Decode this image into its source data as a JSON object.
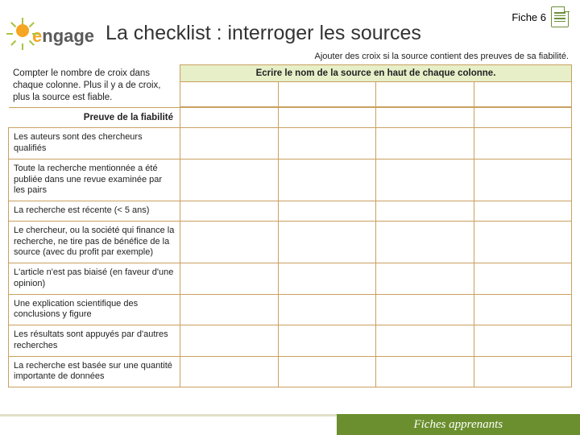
{
  "header": {
    "fiche_label": "Fiche 6",
    "logo_text_e": "e",
    "logo_text_rest": "ngage",
    "title": "La checklist : interroger les sources"
  },
  "subtitle": "Ajouter des croix si la source contient des preuves de sa fiabilité.",
  "instructions": "Compter le nombre de croix dans chaque colonne. Plus il y a de croix, plus la source est fiable.",
  "column_header": "Ecrire le nom de la source en haut de chaque colonne.",
  "row_header": "Preuve de la fiabilité",
  "criteria": [
    "Les auteurs sont des chercheurs qualifiés",
    "Toute la recherche mentionnée a été publiée dans une revue examinée par les pairs",
    "La recherche est récente (< 5 ans)",
    "Le chercheur, ou la société qui finance la recherche, ne tire pas de bénéfice de la source (avec du profit par exemple)",
    "L'article n'est pas biaisé (en faveur d'une opinion)",
    "Une explication scientifique des conclusions y figure",
    "Les résultats sont appuyés par d'autres recherches",
    "La recherche est basée sur une quantité importante de données"
  ],
  "num_source_columns": 4,
  "footer": "Fiches apprenants",
  "colors": {
    "accent_green": "#6b8f2e",
    "header_fill": "#e6efc8",
    "border": "#c9a060",
    "logo_orange": "#f5a623",
    "logo_green": "#a8c43e"
  }
}
